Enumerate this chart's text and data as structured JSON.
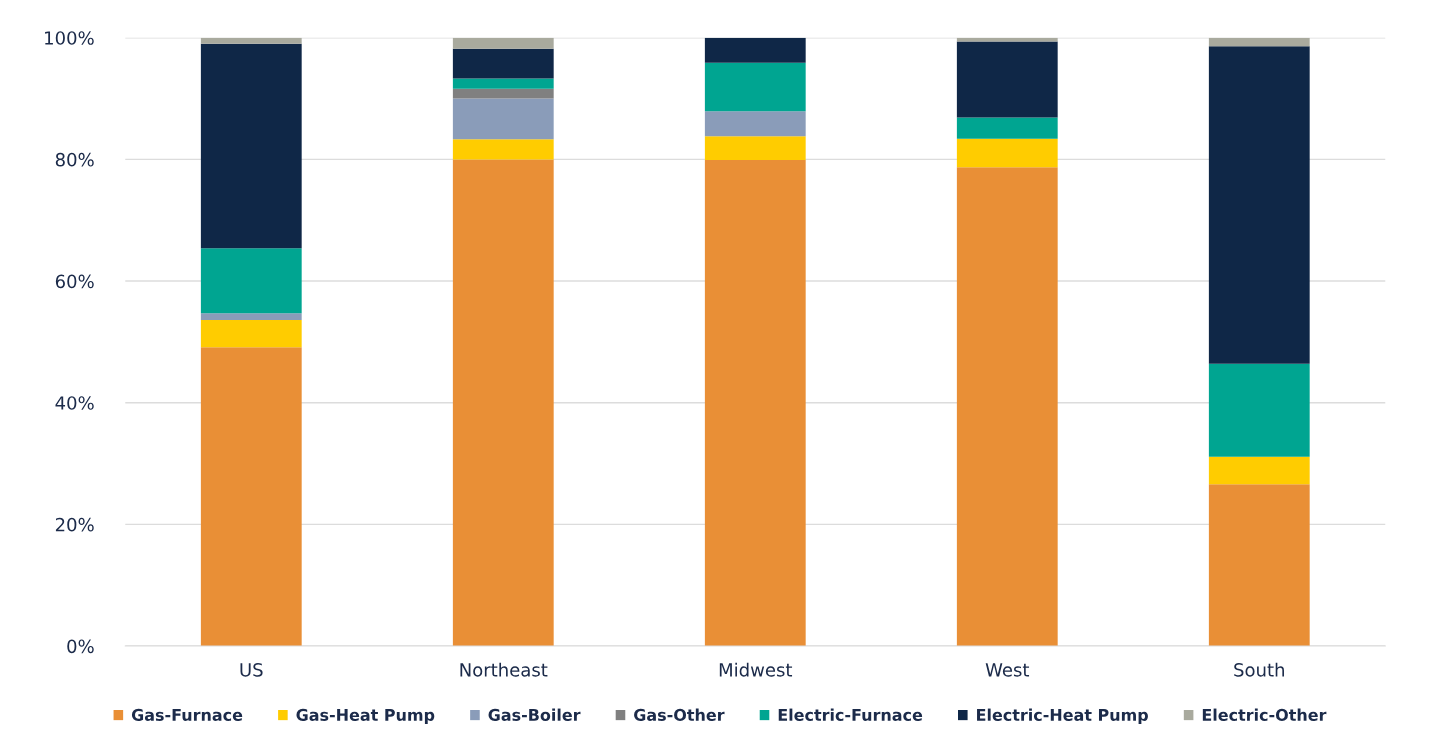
{
  "chart_data": {
    "type": "bar",
    "stacked": true,
    "categories": [
      "US",
      "Northeast",
      "Midwest",
      "West",
      "South"
    ],
    "series": [
      {
        "name": "Gas-Furnace",
        "color": "#e98f36",
        "values": [
          49.1,
          80.0,
          79.9,
          78.7,
          26.6
        ]
      },
      {
        "name": "Gas-Heat Pump",
        "color": "#ffcc00",
        "values": [
          4.5,
          3.3,
          3.9,
          4.7,
          4.5
        ]
      },
      {
        "name": "Gas-Boiler",
        "color": "#8a9cb9",
        "values": [
          1.1,
          6.7,
          4.1,
          0,
          0
        ]
      },
      {
        "name": "Gas-Other",
        "color": "#808080",
        "values": [
          0,
          1.6,
          0,
          0,
          0
        ]
      },
      {
        "name": "Electric-Furnace",
        "color": "#00a591",
        "values": [
          10.7,
          1.7,
          8.0,
          3.5,
          15.3
        ]
      },
      {
        "name": "Electric-Heat Pump",
        "color": "#0f2747",
        "values": [
          33.6,
          4.9,
          4.1,
          12.5,
          52.2
        ]
      },
      {
        "name": "Electric-Other",
        "color": "#a9aa9e",
        "values": [
          1.0,
          1.8,
          0,
          0.6,
          1.4
        ]
      }
    ],
    "ylim": [
      0,
      100
    ],
    "yticks": [
      {
        "value": 0,
        "label": "0%"
      },
      {
        "value": 20,
        "label": "20%"
      },
      {
        "value": 40,
        "label": "40%"
      },
      {
        "value": 60,
        "label": "60%"
      },
      {
        "value": 80,
        "label": "80%"
      },
      {
        "value": 100,
        "label": "100%"
      }
    ],
    "grid": "y",
    "legend": "bottom"
  }
}
